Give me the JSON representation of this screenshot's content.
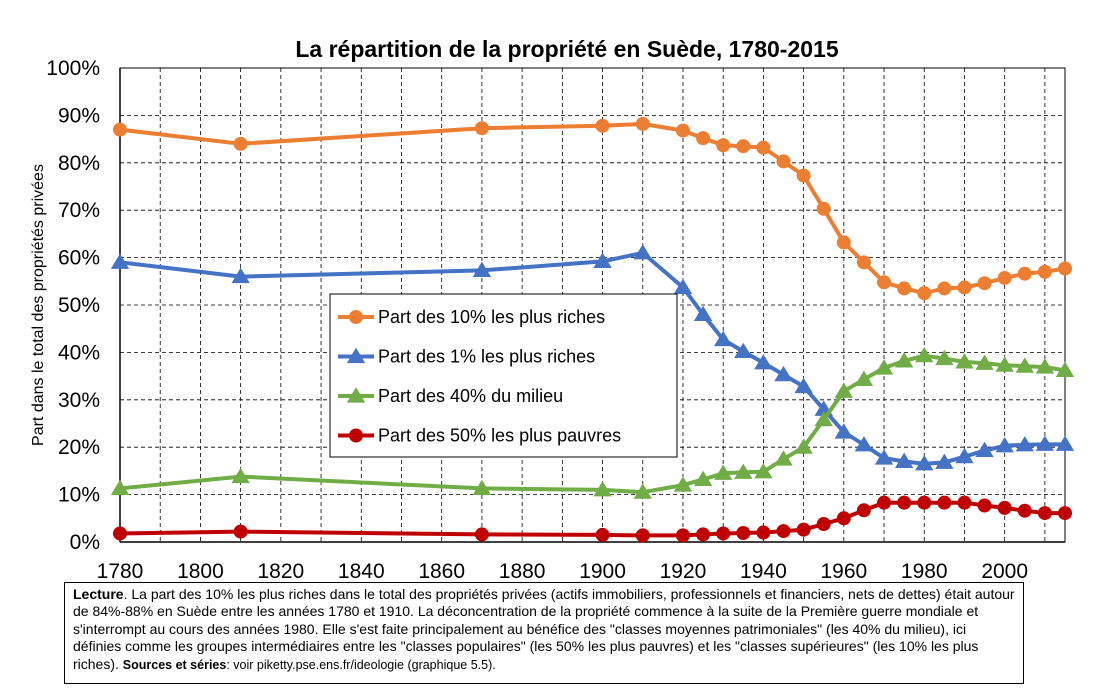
{
  "chart_data": {
    "type": "line",
    "title": "La répartition de la propriété en Suède, 1780-2015",
    "ylabel": "Part dans le total des propriétés privées",
    "xlabel": "",
    "xlim": [
      1780,
      2015
    ],
    "ylim": [
      0,
      1
    ],
    "x_ticks": [
      "1780",
      "1800",
      "1820",
      "1840",
      "1860",
      "1880",
      "1900",
      "1920",
      "1940",
      "1960",
      "1980",
      "2000"
    ],
    "y_ticks": [
      "0%",
      "10%",
      "20%",
      "30%",
      "40%",
      "50%",
      "60%",
      "70%",
      "80%",
      "90%",
      "100%"
    ],
    "grid": "dashed",
    "legend_position": "center-left",
    "series": [
      {
        "name": "Part des 10% les plus riches",
        "color": "#ED7D31",
        "marker": "circle",
        "x": [
          1780,
          1810,
          1870,
          1900,
          1910,
          1920,
          1925,
          1930,
          1935,
          1940,
          1945,
          1950,
          1955,
          1960,
          1965,
          1970,
          1975,
          1980,
          1985,
          1990,
          1995,
          2000,
          2005,
          2010,
          2015
        ],
        "y": [
          0.87,
          0.84,
          0.873,
          0.878,
          0.882,
          0.868,
          0.852,
          0.837,
          0.835,
          0.832,
          0.803,
          0.773,
          0.703,
          0.632,
          0.59,
          0.548,
          0.535,
          0.525,
          0.535,
          0.537,
          0.546,
          0.557,
          0.566,
          0.57,
          0.577
        ]
      },
      {
        "name": "Part des 1% les plus riches",
        "color": "#4472C4",
        "marker": "triangle",
        "x": [
          1780,
          1810,
          1870,
          1900,
          1910,
          1920,
          1925,
          1930,
          1935,
          1940,
          1945,
          1950,
          1955,
          1960,
          1965,
          1970,
          1975,
          1980,
          1985,
          1990,
          1995,
          2000,
          2005,
          2010,
          2015
        ],
        "y": [
          0.59,
          0.56,
          0.573,
          0.592,
          0.61,
          0.537,
          0.48,
          0.427,
          0.402,
          0.378,
          0.353,
          0.328,
          0.28,
          0.232,
          0.205,
          0.177,
          0.17,
          0.165,
          0.168,
          0.18,
          0.193,
          0.203,
          0.205,
          0.206,
          0.206
        ]
      },
      {
        "name": "Part des 40% du milieu",
        "color": "#70AD47",
        "marker": "triangle",
        "x": [
          1780,
          1810,
          1870,
          1900,
          1910,
          1920,
          1925,
          1930,
          1935,
          1940,
          1945,
          1950,
          1955,
          1960,
          1965,
          1970,
          1975,
          1980,
          1985,
          1990,
          1995,
          2000,
          2005,
          2010,
          2015
        ],
        "y": [
          0.113,
          0.138,
          0.113,
          0.11,
          0.105,
          0.12,
          0.132,
          0.145,
          0.147,
          0.148,
          0.175,
          0.2,
          0.258,
          0.318,
          0.343,
          0.367,
          0.382,
          0.393,
          0.387,
          0.38,
          0.377,
          0.373,
          0.371,
          0.369,
          0.362
        ]
      },
      {
        "name": "Part des 50% les plus pauvres",
        "color": "#C00000",
        "marker": "circle",
        "x": [
          1780,
          1810,
          1870,
          1900,
          1910,
          1920,
          1925,
          1930,
          1935,
          1940,
          1945,
          1950,
          1955,
          1960,
          1965,
          1970,
          1975,
          1980,
          1985,
          1990,
          1995,
          2000,
          2005,
          2010,
          2015
        ],
        "y": [
          0.018,
          0.022,
          0.016,
          0.015,
          0.014,
          0.014,
          0.016,
          0.018,
          0.019,
          0.02,
          0.023,
          0.026,
          0.038,
          0.05,
          0.067,
          0.083,
          0.083,
          0.083,
          0.083,
          0.083,
          0.077,
          0.072,
          0.066,
          0.061,
          0.061
        ]
      }
    ]
  },
  "note": {
    "lead_label": "Lecture",
    "body": ". La part des 10% les plus riches dans le total des propriétés privées (actifs immobiliers, professionnels et financiers, nets de dettes) était autour de 84%-88% en Suède entre les années 1780 et 1910. La déconcentration de la propriété commence à la suite de la Première guerre mondiale et s'interrompt au cours des années 1980. Elle s'est faite principalement au bénéfice des \"classes moyennes patrimoniales\" (les 40% du milieu), ici définies comme les groupes intermédiaires entre les \"classes populaires\" (les 50% les plus pauvres) et les \"classes supérieures\" (les 10% les plus riches). ",
    "source_label": "Sources et séries",
    "source_text": ": voir piketty.pse.ens.fr/ideologie (graphique 5.5)."
  }
}
